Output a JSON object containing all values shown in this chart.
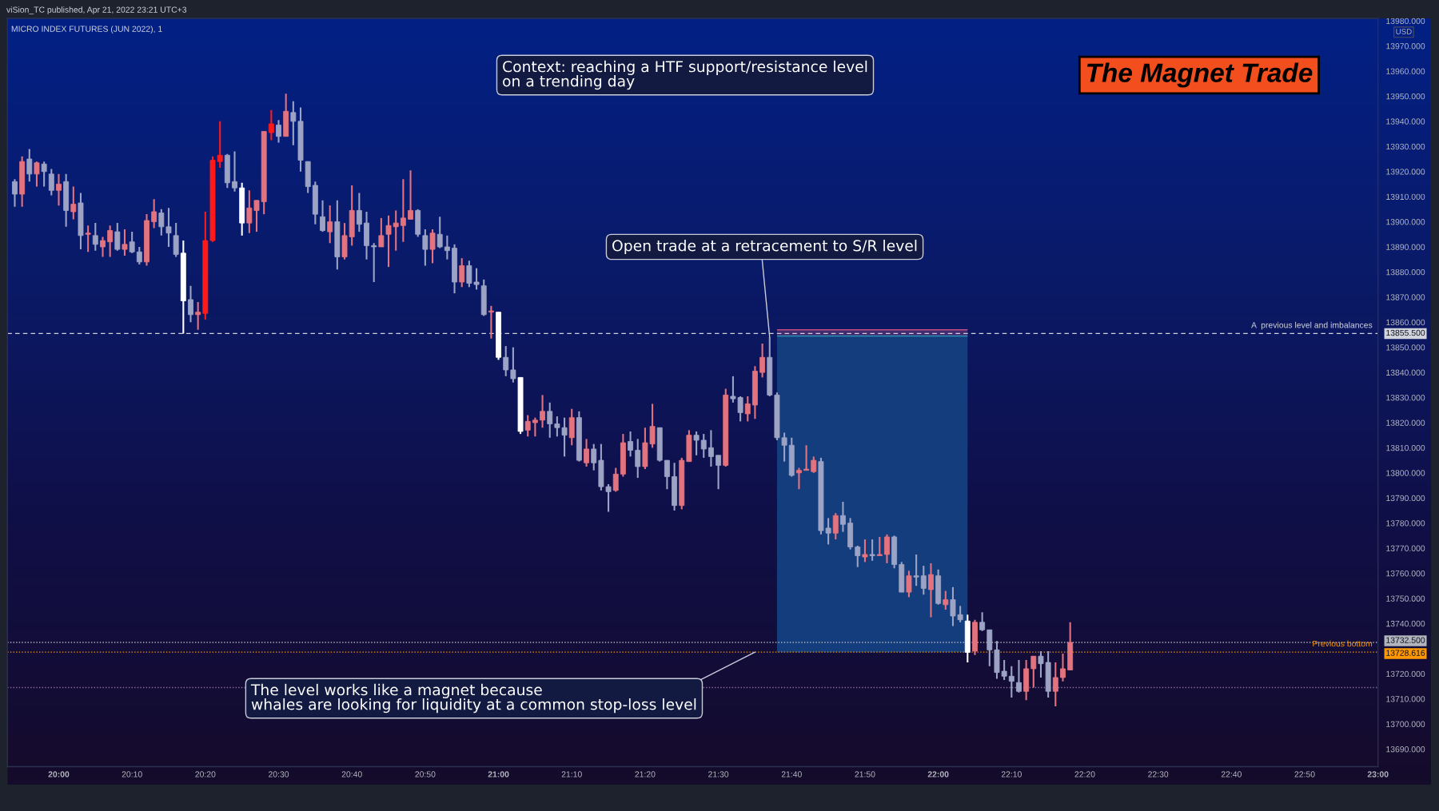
{
  "chart_data": [
    {
      "type": "candlestick",
      "title": "The Magnet Trade",
      "subtitle": "MICRO INDEX FUTURES (JUN 2022), 1",
      "ylabel": "USD",
      "annotations": [
        "viSion_TC published, Apr 21, 2022 23:21 UTC+3",
        "Context: reaching a HTF support/resistance level\non a trending day",
        {
          "text": "Open trade at a retracement to S/R level",
          "x": "2022-04-21T21:37",
          "y": 13854
        },
        {
          "text": "The level works like a magnet because\nwhales are looking for liquidity at a common stop-loss level",
          "x": "2022-04-21T21:35",
          "y": 13728.616
        }
      ],
      "x": [
        "2022-04-21T19:54",
        "2022-04-21T19:55",
        "2022-04-21T19:56",
        "2022-04-21T19:57",
        "2022-04-21T19:58",
        "2022-04-21T19:59",
        "2022-04-21T20:00",
        "2022-04-21T20:01",
        "2022-04-21T20:02",
        "2022-04-21T20:03",
        "2022-04-21T20:04",
        "2022-04-21T20:05",
        "2022-04-21T20:06",
        "2022-04-21T20:07",
        "2022-04-21T20:08",
        "2022-04-21T20:09",
        "2022-04-21T20:10",
        "2022-04-21T20:11",
        "2022-04-21T20:12",
        "2022-04-21T20:13",
        "2022-04-21T20:14",
        "2022-04-21T20:15",
        "2022-04-21T20:16",
        "2022-04-21T20:17",
        "2022-04-21T20:18",
        "2022-04-21T20:19",
        "2022-04-21T20:20",
        "2022-04-21T20:21",
        "2022-04-21T20:22",
        "2022-04-21T20:23",
        "2022-04-21T20:24",
        "2022-04-21T20:25",
        "2022-04-21T20:26",
        "2022-04-21T20:27",
        "2022-04-21T20:28",
        "2022-04-21T20:29",
        "2022-04-21T20:30",
        "2022-04-21T20:31",
        "2022-04-21T20:32",
        "2022-04-21T20:33",
        "2022-04-21T20:34",
        "2022-04-21T20:35",
        "2022-04-21T20:36",
        "2022-04-21T20:37",
        "2022-04-21T20:38",
        "2022-04-21T20:39",
        "2022-04-21T20:40",
        "2022-04-21T20:41",
        "2022-04-21T20:42",
        "2022-04-21T20:43",
        "2022-04-21T20:44",
        "2022-04-21T20:45",
        "2022-04-21T20:46",
        "2022-04-21T20:47",
        "2022-04-21T20:48",
        "2022-04-21T20:49",
        "2022-04-21T20:50",
        "2022-04-21T20:51",
        "2022-04-21T20:52",
        "2022-04-21T20:53",
        "2022-04-21T20:54",
        "2022-04-21T20:55",
        "2022-04-21T20:56",
        "2022-04-21T20:57",
        "2022-04-21T20:58",
        "2022-04-21T20:59",
        "2022-04-21T21:00",
        "2022-04-21T21:01",
        "2022-04-21T21:02",
        "2022-04-21T21:03",
        "2022-04-21T21:04",
        "2022-04-21T21:05",
        "2022-04-21T21:06",
        "2022-04-21T21:07",
        "2022-04-21T21:08",
        "2022-04-21T21:09",
        "2022-04-21T21:10",
        "2022-04-21T21:11",
        "2022-04-21T21:12",
        "2022-04-21T21:13",
        "2022-04-21T21:14",
        "2022-04-21T21:15",
        "2022-04-21T21:16",
        "2022-04-21T21:17",
        "2022-04-21T21:18",
        "2022-04-21T21:19",
        "2022-04-21T21:20",
        "2022-04-21T21:21",
        "2022-04-21T21:22",
        "2022-04-21T21:23",
        "2022-04-21T21:24",
        "2022-04-21T21:25",
        "2022-04-21T21:26",
        "2022-04-21T21:27",
        "2022-04-21T21:28",
        "2022-04-21T21:29",
        "2022-04-21T21:30",
        "2022-04-21T21:31",
        "2022-04-21T21:32",
        "2022-04-21T21:33",
        "2022-04-21T21:34",
        "2022-04-21T21:35",
        "2022-04-21T21:36",
        "2022-04-21T21:37",
        "2022-04-21T21:38",
        "2022-04-21T21:39",
        "2022-04-21T21:40",
        "2022-04-21T21:41",
        "2022-04-21T21:42",
        "2022-04-21T21:43",
        "2022-04-21T21:44",
        "2022-04-21T21:45",
        "2022-04-21T21:46",
        "2022-04-21T21:47",
        "2022-04-21T21:48",
        "2022-04-21T21:49",
        "2022-04-21T21:50",
        "2022-04-21T21:51",
        "2022-04-21T21:52",
        "2022-04-21T21:53",
        "2022-04-21T21:54",
        "2022-04-21T21:55",
        "2022-04-21T21:56",
        "2022-04-21T21:57",
        "2022-04-21T21:58",
        "2022-04-21T21:59",
        "2022-04-21T22:00",
        "2022-04-21T22:01",
        "2022-04-21T22:02",
        "2022-04-21T22:03",
        "2022-04-21T22:04",
        "2022-04-21T22:05",
        "2022-04-21T22:06",
        "2022-04-21T22:07",
        "2022-04-21T22:08",
        "2022-04-21T22:09",
        "2022-04-21T22:10",
        "2022-04-21T22:11",
        "2022-04-21T22:12",
        "2022-04-21T22:13",
        "2022-04-21T22:14",
        "2022-04-21T22:15",
        "2022-04-21T22:16",
        "2022-04-21T22:17",
        "2022-04-21T22:18"
      ],
      "ohlc": [
        [
          13916,
          13917,
          13906,
          13911
        ],
        [
          13911,
          13926,
          13906,
          13924
        ],
        [
          13925,
          13929,
          13916,
          13919
        ],
        [
          13919,
          13924,
          13914,
          13923.5
        ],
        [
          13923,
          13924,
          13914,
          13920
        ],
        [
          13919,
          13921,
          13910.5,
          13912.5
        ],
        [
          13912.5,
          13919,
          13906.5,
          13915
        ],
        [
          13916,
          13919,
          13898,
          13904.5
        ],
        [
          13904,
          13914,
          13901,
          13907
        ],
        [
          13907.5,
          13911.5,
          13889,
          13894.5
        ],
        [
          13895,
          13898.5,
          13888,
          13895.5
        ],
        [
          13894.5,
          13899.5,
          13888.5,
          13891
        ],
        [
          13890,
          13894,
          13886,
          13892.5
        ],
        [
          13892,
          13898.5,
          13886,
          13896.5
        ],
        [
          13896,
          13899.5,
          13888.5,
          13889
        ],
        [
          13889,
          13897,
          13886.5,
          13891
        ],
        [
          13892,
          13896,
          13887.5,
          13888
        ],
        [
          13888,
          13890,
          13883,
          13884
        ],
        [
          13884,
          13903,
          13882.5,
          13900.5
        ],
        [
          13900,
          13909,
          13897.5,
          13904
        ],
        [
          13903.5,
          13905,
          13894.5,
          13898
        ],
        [
          13898,
          13905.5,
          13890,
          13895.5
        ],
        [
          13894.5,
          13899.5,
          13886,
          13887
        ],
        [
          13887.5,
          13892.5,
          13855.5,
          13868.5
        ],
        [
          13869,
          13874.5,
          13860,
          13863
        ],
        [
          13863,
          13868,
          13857,
          13864
        ],
        [
          13863.5,
          13904,
          13861,
          13892.5
        ],
        [
          13892.5,
          13926,
          13892,
          13924.5
        ],
        [
          13924,
          13940,
          13921.5,
          13926.5
        ],
        [
          13926.5,
          13927,
          13913.5,
          13915.5
        ],
        [
          13916,
          13928,
          13912,
          13913.5
        ],
        [
          13913.5,
          13915.5,
          13894.5,
          13899.5
        ],
        [
          13899.5,
          13912.5,
          13895.5,
          13905.5
        ],
        [
          13904.5,
          13908.5,
          13896,
          13908.5
        ],
        [
          13908,
          13936,
          13903,
          13936
        ],
        [
          13935.5,
          13944.5,
          13932.5,
          13939
        ],
        [
          13938.5,
          13940.5,
          13931.5,
          13934
        ],
        [
          13934,
          13951,
          13934,
          13944
        ],
        [
          13943.5,
          13948,
          13930.5,
          13940
        ],
        [
          13940,
          13945.5,
          13920,
          13924.5
        ],
        [
          13924,
          13924,
          13911.5,
          13914
        ],
        [
          13914.5,
          13916,
          13899,
          13903
        ],
        [
          13902,
          13908.5,
          13896,
          13896.5
        ],
        [
          13896,
          13906.5,
          13891.5,
          13900
        ],
        [
          13900,
          13908.5,
          13881,
          13886
        ],
        [
          13886,
          13899.5,
          13885,
          13894.5
        ],
        [
          13894,
          13914.5,
          13890.5,
          13904.5
        ],
        [
          13904.5,
          13911.5,
          13896,
          13899
        ],
        [
          13899.5,
          13904,
          13885,
          13890.5
        ],
        [
          13890.5,
          13891.5,
          13876,
          13890
        ],
        [
          13890,
          13901.5,
          13890,
          13894.5
        ],
        [
          13895,
          13902.5,
          13882,
          13898.5
        ],
        [
          13898,
          13904.5,
          13888.5,
          13899.5
        ],
        [
          13898.5,
          13917,
          13892,
          13901.5
        ],
        [
          13901,
          13920.5,
          13901,
          13904.5
        ],
        [
          13904.5,
          13905,
          13894,
          13895
        ],
        [
          13894.5,
          13897,
          13882.5,
          13889
        ],
        [
          13889,
          13897,
          13883.5,
          13895.5
        ],
        [
          13895,
          13902,
          13889.5,
          13890
        ],
        [
          13890,
          13894.5,
          13885,
          13888.5
        ],
        [
          13889.5,
          13891,
          13871.5,
          13876
        ],
        [
          13876,
          13885.5,
          13874,
          13882.5
        ],
        [
          13882.5,
          13884.5,
          13874,
          13875.5
        ],
        [
          13876,
          13881.5,
          13873,
          13875
        ],
        [
          13874.5,
          13877,
          13862.5,
          13863
        ],
        [
          13864,
          13866.5,
          13853.5,
          13864.5
        ],
        [
          13864,
          13864,
          13845,
          13846
        ],
        [
          13846,
          13850.5,
          13838.5,
          13841
        ],
        [
          13841,
          13850,
          13836,
          13837.5
        ],
        [
          13838,
          13838,
          13815.5,
          13816.5
        ],
        [
          13817,
          13823,
          13814.5,
          13820.5
        ],
        [
          13820,
          13822,
          13814.5,
          13821
        ],
        [
          13821,
          13831,
          13818,
          13824.5
        ],
        [
          13824.5,
          13828,
          13814,
          13819.5
        ],
        [
          13819.5,
          13822.5,
          13814.5,
          13818
        ],
        [
          13818,
          13822,
          13806.5,
          13815
        ],
        [
          13814,
          13825.5,
          13811,
          13822
        ],
        [
          13822,
          13824.5,
          13804.5,
          13805
        ],
        [
          13804,
          13813.5,
          13802.5,
          13809.5
        ],
        [
          13809.5,
          13811.5,
          13801,
          13804
        ],
        [
          13805,
          13811.5,
          13793,
          13794.5
        ],
        [
          13794.5,
          13795.5,
          13784.5,
          13792.5
        ],
        [
          13793,
          13802,
          13792.5,
          13799.5
        ],
        [
          13799.5,
          13815.5,
          13798.5,
          13812
        ],
        [
          13812.5,
          13816.5,
          13806.5,
          13809
        ],
        [
          13809,
          13813.5,
          13798,
          13802.5
        ],
        [
          13802.5,
          13818,
          13801.5,
          13812
        ],
        [
          13811.5,
          13827.5,
          13810,
          13818.5
        ],
        [
          13818,
          13818,
          13804.5,
          13805
        ],
        [
          13805,
          13805,
          13793.5,
          13798.5
        ],
        [
          13798.5,
          13804,
          13785,
          13787
        ],
        [
          13787,
          13806,
          13785.5,
          13805
        ],
        [
          13804.5,
          13817,
          13804.5,
          13815
        ],
        [
          13815,
          13816.5,
          13807,
          13813
        ],
        [
          13813,
          13815.5,
          13806,
          13809.5
        ],
        [
          13810,
          13817,
          13802.5,
          13806.5
        ],
        [
          13807,
          13807,
          13793.5,
          13803
        ],
        [
          13803,
          13833.5,
          13802.5,
          13831
        ],
        [
          13830.5,
          13838.5,
          13828,
          13829.5
        ],
        [
          13830,
          13830.5,
          13820.5,
          13824
        ],
        [
          13823.5,
          13830.5,
          13820.5,
          13827.5
        ],
        [
          13827,
          13842.5,
          13821.5,
          13840.5
        ],
        [
          13840,
          13851.5,
          13838,
          13846
        ],
        [
          13846,
          13854,
          13830.5,
          13831
        ],
        [
          13831,
          13832,
          13813,
          13814
        ],
        [
          13814,
          13816,
          13804.5,
          13811
        ],
        [
          13811,
          13814,
          13798.5,
          13799
        ],
        [
          13800,
          13802,
          13793.5,
          13801
        ],
        [
          13801,
          13811,
          13801,
          13801.5
        ],
        [
          13800.5,
          13806.5,
          13800,
          13805
        ],
        [
          13804.5,
          13806,
          13775.5,
          13777
        ],
        [
          13778,
          13782,
          13771.5,
          13776
        ],
        [
          13776,
          13784,
          13773.5,
          13783
        ],
        [
          13783,
          13788.5,
          13776.5,
          13779.5
        ],
        [
          13780,
          13782,
          13769.5,
          13770.5
        ],
        [
          13770.5,
          13771,
          13762.5,
          13767
        ],
        [
          13766.5,
          13773.5,
          13764.5,
          13767.5
        ],
        [
          13767.5,
          13773.5,
          13765,
          13767
        ],
        [
          13767,
          13774.5,
          13767,
          13767.5
        ],
        [
          13767.5,
          13775.5,
          13764,
          13774.5
        ],
        [
          13774.5,
          13775,
          13762,
          13763.5
        ],
        [
          13763.5,
          13764.5,
          13752.5,
          13752.5
        ],
        [
          13752.5,
          13761,
          13750.5,
          13759
        ],
        [
          13759,
          13767.5,
          13755,
          13758.5
        ],
        [
          13759,
          13763,
          13751.5,
          13754
        ],
        [
          13753.5,
          13764,
          13742.5,
          13759.5
        ],
        [
          13759,
          13761.5,
          13747.5,
          13748
        ],
        [
          13747.5,
          13753,
          13745.5,
          13749.5
        ],
        [
          13749.5,
          13754.5,
          13739,
          13743
        ],
        [
          13743.5,
          13747,
          13740.5,
          13741.5
        ],
        [
          13741,
          13743.5,
          13724.5,
          13728.5
        ],
        [
          13729,
          13741.5,
          13727.5,
          13740.5
        ],
        [
          13740.5,
          13744.5,
          13737,
          13737.5
        ],
        [
          13737.5,
          13737.5,
          13723,
          13729.5
        ],
        [
          13729.5,
          13733,
          13718,
          13720.5
        ],
        [
          13721,
          13725.5,
          13717.5,
          13719
        ],
        [
          13719,
          13723,
          13710.5,
          13717
        ],
        [
          13716.5,
          13725.5,
          13712.5,
          13713
        ],
        [
          13713,
          13725.5,
          13709.5,
          13722
        ],
        [
          13722,
          13727,
          13714.5,
          13727
        ],
        [
          13727,
          13729,
          13718.5,
          13724
        ],
        [
          13724.5,
          13729,
          13710.5,
          13713
        ],
        [
          13713,
          13724.5,
          13707,
          13718.5
        ],
        [
          13718.5,
          13728,
          13717,
          13722
        ],
        [
          13721.5,
          13740.5,
          13721.5,
          13732.5
        ]
      ],
      "colors": [
        "#9ca3c4",
        "#e3737e",
        "#9ca3c4",
        "#e3737e",
        "#9ca3c4",
        "#9ca3c4",
        "#e3737e",
        "#9ca3c4",
        "#e3737e",
        "#9ca3c4",
        "#e3737e",
        "#9ca3c4",
        "#e3737e",
        "#e3737e",
        "#9ca3c4",
        "#e3737e",
        "#9ca3c4",
        "#9ca3c4",
        "#e3737e",
        "#e3737e",
        "#9ca3c4",
        "#9ca3c4",
        "#9ca3c4",
        "#ffffff",
        "#9ca3c4",
        "#e3737e",
        "#ff1a1a",
        "#ff1a1a",
        "#ff1a1a",
        "#9ca3c4",
        "#9ca3c4",
        "#ffffff",
        "#e3737e",
        "#e3737e",
        "#e3737e",
        "#ff1a1a",
        "#9ca3c4",
        "#e3737e",
        "#9ca3c4",
        "#9ca3c4",
        "#9ca3c4",
        "#9ca3c4",
        "#9ca3c4",
        "#e3737e",
        "#9ca3c4",
        "#e3737e",
        "#e3737e",
        "#9ca3c4",
        "#9ca3c4",
        "#9ca3c4",
        "#e3737e",
        "#e3737e",
        "#e3737e",
        "#e3737e",
        "#e3737e",
        "#9ca3c4",
        "#9ca3c4",
        "#e3737e",
        "#9ca3c4",
        "#9ca3c4",
        "#9ca3c4",
        "#e3737e",
        "#9ca3c4",
        "#9ca3c4",
        "#9ca3c4",
        "#e3737e",
        "#ffffff",
        "#9ca3c4",
        "#9ca3c4",
        "#ffffff",
        "#e3737e",
        "#e3737e",
        "#e3737e",
        "#9ca3c4",
        "#9ca3c4",
        "#9ca3c4",
        "#e3737e",
        "#9ca3c4",
        "#e3737e",
        "#9ca3c4",
        "#9ca3c4",
        "#9ca3c4",
        "#e3737e",
        "#e3737e",
        "#9ca3c4",
        "#9ca3c4",
        "#e3737e",
        "#e3737e",
        "#9ca3c4",
        "#9ca3c4",
        "#9ca3c4",
        "#e3737e",
        "#e3737e",
        "#9ca3c4",
        "#9ca3c4",
        "#9ca3c4",
        "#9ca3c4",
        "#e3737e",
        "#9ca3c4",
        "#9ca3c4",
        "#e3737e",
        "#e3737e",
        "#e3737e",
        "#9ca3c4",
        "#9ca3c4",
        "#9ca3c4",
        "#9ca3c4",
        "#e3737e",
        "#e3737e",
        "#e3737e",
        "#9ca3c4",
        "#9ca3c4",
        "#e3737e",
        "#9ca3c4",
        "#9ca3c4",
        "#9ca3c4",
        "#e3737e",
        "#9ca3c4",
        "#e3737e",
        "#e3737e",
        "#9ca3c4",
        "#9ca3c4",
        "#e3737e",
        "#9ca3c4",
        "#9ca3c4",
        "#e3737e",
        "#9ca3c4",
        "#e3737e",
        "#9ca3c4",
        "#9ca3c4",
        "#ffffff",
        "#e3737e",
        "#9ca3c4",
        "#9ca3c4",
        "#9ca3c4",
        "#9ca3c4",
        "#9ca3c4",
        "#9ca3c4",
        "#e3737e",
        "#e3737e",
        "#9ca3c4",
        "#9ca3c4",
        "#e3737e",
        "#e3737e",
        "#e3737e"
      ],
      "series": [
        {
          "type": "line",
          "x": [
            "2022-04-21T21:38",
            "2022-04-21T22:04"
          ],
          "values": [
            13854.5,
            13854.5
          ],
          "lower": [
            13728.616,
            13728.616
          ],
          "upper": [
            13854.5,
            13854.5
          ],
          "color": "#2a8fb0"
        },
        {
          "type": "line",
          "x": [
            "2022-04-21T21:38",
            "2022-04-21T22:04"
          ],
          "values": [
            13857,
            13857
          ],
          "lower": [
            13854.5,
            13854.5
          ],
          "upper": [
            13857,
            13857
          ],
          "color": "#c05080"
        }
      ],
      "ref_lines": [
        {
          "axis": "y",
          "value": 13855.5,
          "label": "A  previous level and imbalances",
          "color": "#d1d4dc",
          "line_style": "dashed"
        },
        {
          "axis": "y",
          "value": 13732.5,
          "label": null,
          "color": "#b2b5be",
          "line_style": "dotted"
        },
        {
          "axis": "y",
          "value": 13728.616,
          "label": "Previous bottom",
          "color": "#ff9800",
          "line_style": "dotted"
        },
        {
          "axis": "y",
          "value": 13714.5,
          "label": null,
          "color": "#8a6f9e",
          "line_style": "dotted"
        }
      ],
      "xlim": [
        "2022-04-21T19:53",
        "2022-04-21T23:00"
      ],
      "ylim": [
        13683,
        13981
      ],
      "xticks": [
        {
          "value": "2022-04-21T20:00",
          "label": "20:00"
        },
        {
          "value": "2022-04-21T20:10",
          "label": "20:10"
        },
        {
          "value": "2022-04-21T20:20",
          "label": "20:20"
        },
        {
          "value": "2022-04-21T20:30",
          "label": "20:30"
        },
        {
          "value": "2022-04-21T20:40",
          "label": "20:40"
        },
        {
          "value": "2022-04-21T20:50",
          "label": "20:50"
        },
        {
          "value": "2022-04-21T21:00",
          "label": "21:00"
        },
        {
          "value": "2022-04-21T21:10",
          "label": "21:10"
        },
        {
          "value": "2022-04-21T21:20",
          "label": "21:20"
        },
        {
          "value": "2022-04-21T21:30",
          "label": "21:30"
        },
        {
          "value": "2022-04-21T21:40",
          "label": "21:40"
        },
        {
          "value": "2022-04-21T21:50",
          "label": "21:50"
        },
        {
          "value": "2022-04-21T22:00",
          "label": "22:00"
        },
        {
          "value": "2022-04-21T22:10",
          "label": "22:10"
        },
        {
          "value": "2022-04-21T22:20",
          "label": "22:20"
        },
        {
          "value": "2022-04-21T22:30",
          "label": "22:30"
        },
        {
          "value": "2022-04-21T22:40",
          "label": "22:40"
        },
        {
          "value": "2022-04-21T22:50",
          "label": "22:50"
        },
        {
          "value": "2022-04-21T23:00",
          "label": "23:00"
        }
      ],
      "yticks": [
        {
          "value": 13690,
          "label": "13690.000"
        },
        {
          "value": 13700,
          "label": "13700.000"
        },
        {
          "value": 13710,
          "label": "13710.000"
        },
        {
          "value": 13720,
          "label": "13720.000"
        },
        {
          "value": 13728.616,
          "label": "13728.616"
        },
        {
          "value": 13732.5,
          "label": "13732.500"
        },
        {
          "value": 13740,
          "label": "13740.000"
        },
        {
          "value": 13750,
          "label": "13750.000"
        },
        {
          "value": 13760,
          "label": "13760.000"
        },
        {
          "value": 13770,
          "label": "13770.000"
        },
        {
          "value": 13780,
          "label": "13780.000"
        },
        {
          "value": 13790,
          "label": "13790.000"
        },
        {
          "value": 13800,
          "label": "13800.000"
        },
        {
          "value": 13810,
          "label": "13810.000"
        },
        {
          "value": 13820,
          "label": "13820.000"
        },
        {
          "value": 13830,
          "label": "13830.000"
        },
        {
          "value": 13840,
          "label": "13840.000"
        },
        {
          "value": 13850,
          "label": "13850.000"
        },
        {
          "value": 13855.5,
          "label": "13855.500"
        },
        {
          "value": 13860,
          "label": "13860.000"
        },
        {
          "value": 13870,
          "label": "13870.000"
        },
        {
          "value": 13880,
          "label": "13880.000"
        },
        {
          "value": 13890,
          "label": "13890.000"
        },
        {
          "value": 13900,
          "label": "13900.000"
        },
        {
          "value": 13910,
          "label": "13910.000"
        },
        {
          "value": 13920,
          "label": "13920.000"
        },
        {
          "value": 13930,
          "label": "13930.000"
        },
        {
          "value": 13940,
          "label": "13940.000"
        },
        {
          "value": 13950,
          "label": "13950.000"
        },
        {
          "value": 13960,
          "label": "13960.000"
        },
        {
          "value": 13970,
          "label": "13970.000"
        },
        {
          "value": 13980,
          "label": "13980.000"
        }
      ]
    }
  ]
}
